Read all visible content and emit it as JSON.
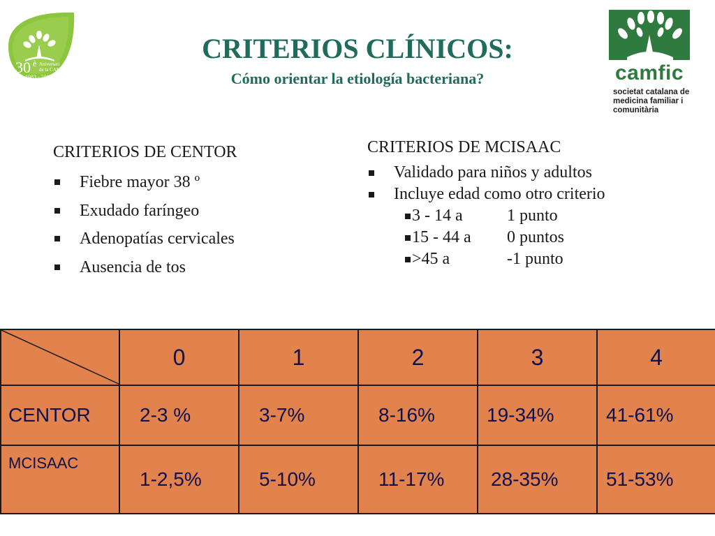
{
  "title": "CRITERIOS CLÍNICOS:",
  "subtitle": "Cómo orientar la etiología bacteriana?",
  "logo_left": {
    "numeral": "30",
    "small_e": "è",
    "line1": "Aniversari",
    "line2": "de la CAMFiC",
    "years": "1983 - 2013",
    "color": "#8cc63f"
  },
  "logo_right": {
    "name": "camfic",
    "line1": "societat catalana de",
    "line2": "medicina familiar i",
    "line3": "comunitària",
    "color": "#2f7a3e"
  },
  "centor": {
    "heading": "CRITERIOS DE CENTOR",
    "items": [
      {
        "label": "Fiebre mayor 38 º"
      },
      {
        "label": "Exudado faríngeo"
      },
      {
        "label": "Adenopatías cervicales"
      },
      {
        "label": "Ausencia de tos"
      }
    ]
  },
  "mcisaac": {
    "heading": "CRITERIOS DE MCISAAC",
    "items": [
      {
        "label": "Validado para niños y adultos"
      },
      {
        "label": "Incluye edad como otro criterio"
      }
    ],
    "age_points": [
      {
        "range": "3 - 14 a",
        "points": "1 punto"
      },
      {
        "range": "15 - 44 a",
        "points": "0 puntos"
      },
      {
        "range": ">45 a",
        "points": "-1 punto"
      }
    ]
  },
  "table": {
    "header": [
      "0",
      "1",
      "2",
      "3",
      "4"
    ],
    "rows": [
      {
        "label": "CENTOR",
        "values": [
          "2-3 %",
          "3-7%",
          "8-16%",
          "19-34%",
          "41-61%"
        ]
      },
      {
        "label": "MCISAAC",
        "values": [
          "1-2,5%",
          "5-10%",
          "11-17%",
          "28-35%",
          "51-53%"
        ]
      }
    ],
    "fill_color": "#e2824d",
    "text_color": "#10104a"
  }
}
